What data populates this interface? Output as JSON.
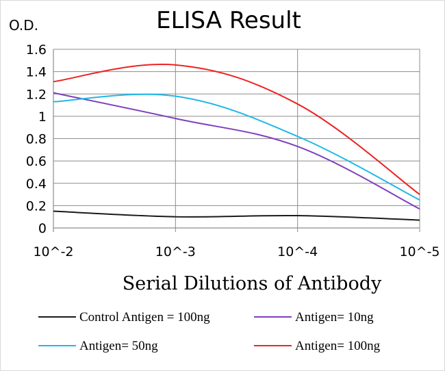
{
  "chart_data": {
    "type": "line",
    "title": "ELISA Result",
    "ylabel": "O.D.",
    "xlabel": "Serial Dilutions of Antibody",
    "categories": [
      "10^-2",
      "10^-3",
      "10^-4",
      "10^-5"
    ],
    "ylim": [
      0,
      1.6
    ],
    "yticks": [
      "0",
      "0.2",
      "0.4",
      "0.6",
      "0.8",
      "1",
      "1.2",
      "1.4",
      "1.6"
    ],
    "grid": true,
    "legend_position": "bottom",
    "series": [
      {
        "name": "Control Antigen = 100ng",
        "color": "#1a1a1a",
        "values": [
          0.15,
          0.1,
          0.11,
          0.07
        ]
      },
      {
        "name": "Antigen= 10ng",
        "color": "#7f3fbf",
        "values": [
          1.21,
          0.98,
          0.73,
          0.17
        ]
      },
      {
        "name": "Antigen= 50ng",
        "color": "#1fb8e6",
        "values": [
          1.13,
          1.18,
          0.82,
          0.25
        ]
      },
      {
        "name": "Antigen= 100ng",
        "color": "#ee2222",
        "values": [
          1.31,
          1.46,
          1.11,
          0.3
        ]
      }
    ]
  }
}
